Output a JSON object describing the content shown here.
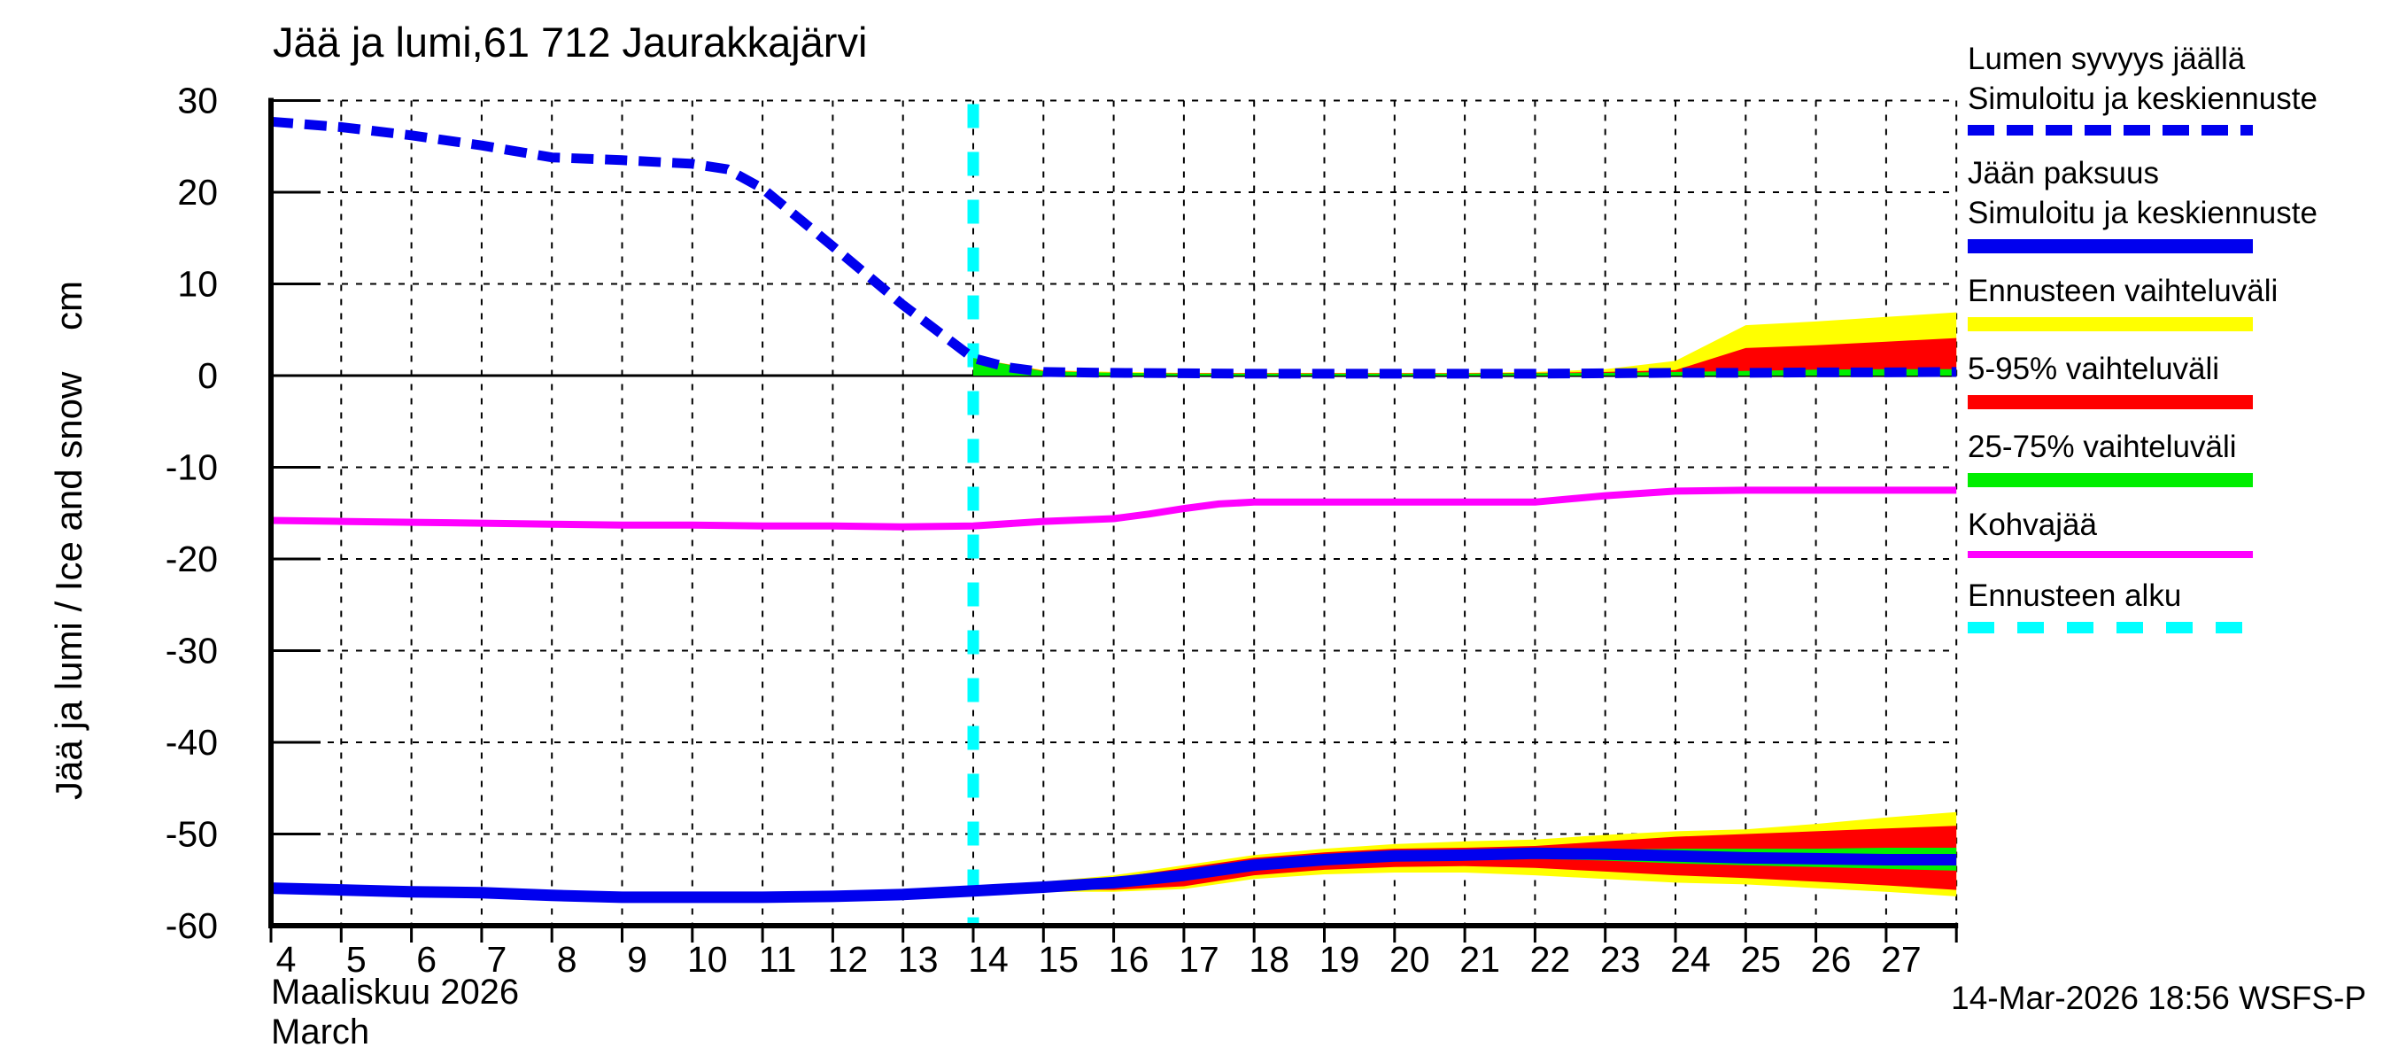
{
  "footer": {
    "timestamp": "14-Mar-2026 18:56 WSFS-P"
  },
  "colors": {
    "background": "#ffffff",
    "axis": "#000000",
    "simulated_blue": "#0000ee",
    "range_yellow": "#ffff00",
    "range_red": "#ff0000",
    "range_green": "#00ee00",
    "kohvajaa_magenta": "#ff00ff",
    "forecast_start_cyan": "#00ffff"
  },
  "legend": {
    "entries": [
      {
        "lines": [
          "Lumen syvyys jäällä",
          "Simuloitu ja keskiennuste"
        ],
        "sample": {
          "pattern": "dashed",
          "color": "#0000ee",
          "height": 12,
          "dash_on": 30,
          "dash_off": 14
        }
      },
      {
        "lines": [
          "Jään paksuus",
          "Simuloitu ja keskiennuste"
        ],
        "sample": {
          "pattern": "solid",
          "color": "#0000ee",
          "height": 16
        }
      },
      {
        "lines": [
          "Ennusteen vaihteluväli"
        ],
        "sample": {
          "pattern": "solid",
          "color": "#ffff00",
          "height": 16
        }
      },
      {
        "lines": [
          "5-95% vaihteluväli"
        ],
        "sample": {
          "pattern": "solid",
          "color": "#ff0000",
          "height": 16
        }
      },
      {
        "lines": [
          "25-75% vaihteluväli"
        ],
        "sample": {
          "pattern": "solid",
          "color": "#00ee00",
          "height": 16
        }
      },
      {
        "lines": [
          "Kohvajää"
        ],
        "sample": {
          "pattern": "solid",
          "color": "#ff00ff",
          "height": 8
        }
      },
      {
        "lines": [
          "Ennusteen alku"
        ],
        "sample": {
          "pattern": "dashed",
          "color": "#00ffff",
          "height": 13,
          "dash_on": 30,
          "dash_off": 26
        }
      }
    ]
  },
  "chart_data": {
    "type": "line",
    "title": "Jää ja lumi,61 712 Jaurakkajärvi",
    "ylabel": "Jää ja lumi / Ice and snow    cm",
    "xlabel_fi": "Maaliskuu 2026",
    "xlabel_en": "March",
    "x_unit": "day of March 2026",
    "xlim": [
      4,
      28
    ],
    "ylim": [
      -60,
      30
    ],
    "grid": true,
    "legend_position": "right",
    "y_ticks": [
      30,
      20,
      10,
      0,
      -10,
      -20,
      -30,
      -40,
      -50,
      -60
    ],
    "x_tick_days": [
      4,
      5,
      6,
      7,
      8,
      9,
      10,
      11,
      12,
      13,
      14,
      15,
      16,
      17,
      18,
      19,
      20,
      21,
      22,
      23,
      24,
      25,
      26,
      27
    ],
    "forecast_start_day": 14,
    "series": [
      {
        "id": "snow_depth_median",
        "name": "Lumen syvyys jäällä — Simuloitu ja keskiennuste",
        "color": "#0000ee",
        "style": "dashed",
        "width": 11,
        "points": [
          [
            4,
            27.7
          ],
          [
            5,
            27.1
          ],
          [
            6,
            26.2
          ],
          [
            7,
            25.1
          ],
          [
            8,
            23.8
          ],
          [
            9,
            23.5
          ],
          [
            10,
            23.1
          ],
          [
            10.5,
            22.5
          ],
          [
            11,
            20.4
          ],
          [
            12,
            14.1
          ],
          [
            13,
            7.7
          ],
          [
            14,
            1.9
          ],
          [
            14.5,
            0.9
          ],
          [
            15,
            0.4
          ],
          [
            16,
            0.3
          ],
          [
            17,
            0.25
          ],
          [
            18,
            0.2
          ],
          [
            19,
            0.2
          ],
          [
            20,
            0.2
          ],
          [
            21,
            0.2
          ],
          [
            22,
            0.2
          ],
          [
            23,
            0.25
          ],
          [
            24,
            0.3
          ],
          [
            25,
            0.3
          ],
          [
            26,
            0.35
          ],
          [
            27,
            0.35
          ],
          [
            28,
            0.4
          ]
        ]
      },
      {
        "id": "ice_thickness_median",
        "name": "Jään paksuus — Simuloitu ja keskiennuste",
        "color": "#0000ee",
        "style": "solid",
        "width": 13,
        "points": [
          [
            4,
            -55.9
          ],
          [
            5,
            -56.1
          ],
          [
            6,
            -56.3
          ],
          [
            7,
            -56.4
          ],
          [
            8,
            -56.7
          ],
          [
            9,
            -56.9
          ],
          [
            10,
            -56.9
          ],
          [
            11,
            -56.9
          ],
          [
            12,
            -56.8
          ],
          [
            13,
            -56.6
          ],
          [
            14,
            -56.2
          ],
          [
            15,
            -55.8
          ],
          [
            16,
            -55.3
          ],
          [
            17,
            -54.5
          ],
          [
            18,
            -53.4
          ],
          [
            19,
            -52.8
          ],
          [
            20,
            -52.4
          ],
          [
            21,
            -52.3
          ],
          [
            22,
            -52.1
          ],
          [
            23,
            -52.2
          ],
          [
            24,
            -52.4
          ],
          [
            25,
            -52.6
          ],
          [
            26,
            -52.7
          ],
          [
            27,
            -52.8
          ],
          [
            28,
            -52.8
          ]
        ]
      },
      {
        "id": "kohvajaa",
        "name": "Kohvajää",
        "color": "#ff00ff",
        "style": "solid",
        "width": 8,
        "points": [
          [
            4,
            -15.8
          ],
          [
            5,
            -15.9
          ],
          [
            6,
            -16.0
          ],
          [
            7,
            -16.1
          ],
          [
            8,
            -16.2
          ],
          [
            9,
            -16.3
          ],
          [
            10,
            -16.3
          ],
          [
            11,
            -16.4
          ],
          [
            12,
            -16.4
          ],
          [
            13,
            -16.5
          ],
          [
            14,
            -16.4
          ],
          [
            15,
            -15.9
          ],
          [
            16,
            -15.6
          ],
          [
            16.5,
            -15.1
          ],
          [
            17,
            -14.5
          ],
          [
            17.5,
            -14.0
          ],
          [
            18,
            -13.8
          ],
          [
            19,
            -13.8
          ],
          [
            20,
            -13.8
          ],
          [
            21,
            -13.8
          ],
          [
            22,
            -13.8
          ],
          [
            23,
            -13.1
          ],
          [
            24,
            -12.6
          ],
          [
            25,
            -12.5
          ],
          [
            26,
            -12.5
          ],
          [
            27,
            -12.5
          ],
          [
            28,
            -12.5
          ]
        ]
      }
    ],
    "bands": [
      {
        "id": "snow_full_range",
        "name": "Ennusteen vaihteluväli (lumi)",
        "color": "#ffff00",
        "upper": [
          [
            14,
            1.9
          ],
          [
            15,
            0.6
          ],
          [
            16,
            0.4
          ],
          [
            17,
            0.3
          ],
          [
            18,
            0.3
          ],
          [
            19,
            0.3
          ],
          [
            20,
            0.3
          ],
          [
            21,
            0.3
          ],
          [
            22,
            0.4
          ],
          [
            23,
            0.7
          ],
          [
            24,
            1.6
          ],
          [
            25,
            5.5
          ],
          [
            26,
            5.9
          ],
          [
            27,
            6.4
          ],
          [
            28,
            6.9
          ]
        ],
        "lower": [
          [
            14,
            0
          ],
          [
            28,
            0
          ]
        ]
      },
      {
        "id": "snow_5_95",
        "name": "5-95% vaihteluväli (lumi)",
        "color": "#ff0000",
        "upper": [
          [
            14,
            1.9
          ],
          [
            15,
            0.5
          ],
          [
            16,
            0.3
          ],
          [
            17,
            0.25
          ],
          [
            18,
            0.25
          ],
          [
            19,
            0.25
          ],
          [
            20,
            0.25
          ],
          [
            21,
            0.25
          ],
          [
            22,
            0.3
          ],
          [
            23,
            0.4
          ],
          [
            24,
            0.6
          ],
          [
            25,
            3.0
          ],
          [
            26,
            3.3
          ],
          [
            27,
            3.7
          ],
          [
            28,
            4.1
          ]
        ],
        "lower": [
          [
            14,
            0
          ],
          [
            28,
            0
          ]
        ]
      },
      {
        "id": "snow_25_75",
        "name": "25-75% vaihteluväli (lumi)",
        "color": "#00ee00",
        "upper": [
          [
            14,
            1.9
          ],
          [
            15,
            0.45
          ],
          [
            16,
            0.3
          ],
          [
            17,
            0.2
          ],
          [
            18,
            0.2
          ],
          [
            19,
            0.2
          ],
          [
            20,
            0.2
          ],
          [
            21,
            0.2
          ],
          [
            22,
            0.25
          ],
          [
            23,
            0.3
          ],
          [
            24,
            0.4
          ],
          [
            25,
            0.5
          ],
          [
            26,
            0.65
          ],
          [
            27,
            0.7
          ],
          [
            28,
            0.7
          ]
        ],
        "lower": [
          [
            14,
            0
          ],
          [
            28,
            0
          ]
        ]
      },
      {
        "id": "ice_full_range",
        "name": "Ennusteen vaihteluväli (jää)",
        "color": "#ffff00",
        "upper": [
          [
            14,
            -56.0
          ],
          [
            15,
            -55.2
          ],
          [
            16,
            -54.5
          ],
          [
            17,
            -53.4
          ],
          [
            18,
            -52.3
          ],
          [
            19,
            -51.6
          ],
          [
            20,
            -51.1
          ],
          [
            21,
            -50.8
          ],
          [
            22,
            -50.6
          ],
          [
            23,
            -50.1
          ],
          [
            24,
            -49.7
          ],
          [
            25,
            -49.5
          ],
          [
            26,
            -48.9
          ],
          [
            27,
            -48.2
          ],
          [
            28,
            -47.6
          ]
        ],
        "lower": [
          [
            14,
            -56.4
          ],
          [
            15,
            -56.3
          ],
          [
            16,
            -56.3
          ],
          [
            17,
            -56.0
          ],
          [
            18,
            -54.9
          ],
          [
            19,
            -54.4
          ],
          [
            20,
            -54.2
          ],
          [
            21,
            -54.2
          ],
          [
            22,
            -54.5
          ],
          [
            23,
            -54.9
          ],
          [
            24,
            -55.3
          ],
          [
            25,
            -55.5
          ],
          [
            26,
            -55.9
          ],
          [
            27,
            -56.3
          ],
          [
            28,
            -56.8
          ]
        ]
      },
      {
        "id": "ice_5_95",
        "name": "5-95% vaihteluväli (jää)",
        "color": "#ff0000",
        "upper": [
          [
            14,
            -56.1
          ],
          [
            15,
            -55.4
          ],
          [
            16,
            -54.8
          ],
          [
            17,
            -53.7
          ],
          [
            18,
            -52.6
          ],
          [
            19,
            -52.0
          ],
          [
            20,
            -51.6
          ],
          [
            21,
            -51.5
          ],
          [
            22,
            -51.3
          ],
          [
            23,
            -50.8
          ],
          [
            24,
            -50.3
          ],
          [
            25,
            -50.0
          ],
          [
            26,
            -49.7
          ],
          [
            27,
            -49.4
          ],
          [
            28,
            -49.1
          ]
        ],
        "lower": [
          [
            14,
            -56.3
          ],
          [
            15,
            -56.0
          ],
          [
            16,
            -56.1
          ],
          [
            17,
            -55.7
          ],
          [
            18,
            -54.5
          ],
          [
            19,
            -53.9
          ],
          [
            20,
            -53.6
          ],
          [
            21,
            -53.5
          ],
          [
            22,
            -53.7
          ],
          [
            23,
            -54.1
          ],
          [
            24,
            -54.5
          ],
          [
            25,
            -54.8
          ],
          [
            26,
            -55.2
          ],
          [
            27,
            -55.6
          ],
          [
            28,
            -56.1
          ]
        ]
      },
      {
        "id": "ice_25_75",
        "name": "25-75% vaihteluväli (jää)",
        "color": "#00ee00",
        "upper": [
          [
            14,
            -56.15
          ],
          [
            16,
            -55.1
          ],
          [
            18,
            -53.1
          ],
          [
            20,
            -52.1
          ],
          [
            22,
            -51.8
          ],
          [
            23,
            -51.7
          ],
          [
            24,
            -51.6
          ],
          [
            25,
            -51.6
          ],
          [
            26,
            -51.6
          ],
          [
            27,
            -51.5
          ],
          [
            28,
            -51.5
          ]
        ],
        "lower": [
          [
            14,
            -56.25
          ],
          [
            16,
            -55.6
          ],
          [
            18,
            -53.8
          ],
          [
            20,
            -52.9
          ],
          [
            22,
            -52.7
          ],
          [
            23,
            -52.9
          ],
          [
            24,
            -53.2
          ],
          [
            25,
            -53.4
          ],
          [
            26,
            -53.6
          ],
          [
            27,
            -53.8
          ],
          [
            28,
            -54.0
          ]
        ]
      }
    ]
  }
}
